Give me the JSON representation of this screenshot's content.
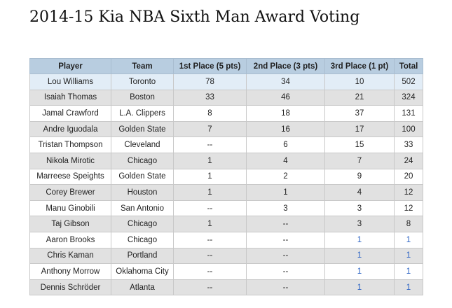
{
  "title": "2014-15 Kia NBA Sixth Man Award Voting",
  "table": {
    "headers": [
      "Player",
      "Team",
      "1st Place (5 pts)",
      "2nd Place (3 pts)",
      "3rd Place (1 pt)",
      "Total"
    ],
    "rows": [
      {
        "player": "Lou Williams",
        "team": "Toronto",
        "first": "78",
        "second": "34",
        "third": "10",
        "total": "502"
      },
      {
        "player": "Isaiah Thomas",
        "team": "Boston",
        "first": "33",
        "second": "46",
        "third": "21",
        "total": "324"
      },
      {
        "player": "Jamal Crawford",
        "team": "L.A. Clippers",
        "first": "8",
        "second": "18",
        "third": "37",
        "total": "131"
      },
      {
        "player": "Andre Iguodala",
        "team": "Golden State",
        "first": "7",
        "second": "16",
        "third": "17",
        "total": "100"
      },
      {
        "player": "Tristan Thompson",
        "team": "Cleveland",
        "first": "--",
        "second": "6",
        "third": "15",
        "total": "33"
      },
      {
        "player": "Nikola Mirotic",
        "team": "Chicago",
        "first": "1",
        "second": "4",
        "third": "7",
        "total": "24"
      },
      {
        "player": "Marreese Speights",
        "team": "Golden State",
        "first": "1",
        "second": "2",
        "third": "9",
        "total": "20"
      },
      {
        "player": "Corey Brewer",
        "team": "Houston",
        "first": "1",
        "second": "1",
        "third": "4",
        "total": "12"
      },
      {
        "player": "Manu Ginobili",
        "team": "San Antonio",
        "first": "--",
        "second": "3",
        "third": "3",
        "total": "12"
      },
      {
        "player": "Taj Gibson",
        "team": "Chicago",
        "first": "1",
        "second": "--",
        "third": "3",
        "total": "8"
      },
      {
        "player": "Aaron Brooks",
        "team": "Chicago",
        "first": "--",
        "second": "--",
        "third": "1",
        "total": "1"
      },
      {
        "player": "Chris Kaman",
        "team": "Portland",
        "first": "--",
        "second": "--",
        "third": "1",
        "total": "1"
      },
      {
        "player": "Anthony Morrow",
        "team": "Oklahoma City",
        "first": "--",
        "second": "--",
        "third": "1",
        "total": "1"
      },
      {
        "player": "Dennis Schröder",
        "team": "Atlanta",
        "first": "--",
        "second": "--",
        "third": "1",
        "total": "1"
      }
    ]
  },
  "colors": {
    "header_bg": "#b8cde0",
    "highlight_row_bg": "#e2edf7",
    "striped_row_bg": "#e1e1e1",
    "blue_number": "#2a62c4"
  }
}
